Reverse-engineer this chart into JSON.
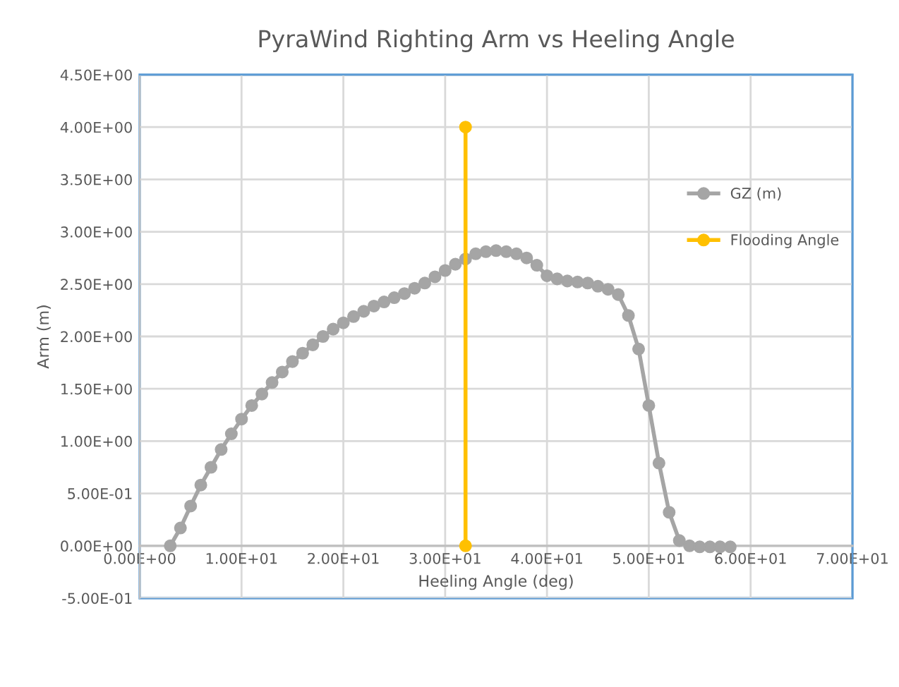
{
  "chart_data": {
    "type": "line",
    "title": "PyraWind Righting Arm vs Heeling Angle",
    "xlabel": "Heeling Angle (deg)",
    "ylabel": "Arm (m)",
    "xlim": [
      0,
      70
    ],
    "ylim": [
      -0.5,
      4.5
    ],
    "xticks": [
      {
        "value": 0,
        "label": "0.00E+00"
      },
      {
        "value": 10,
        "label": "1.00E+01"
      },
      {
        "value": 20,
        "label": "2.00E+01"
      },
      {
        "value": 30,
        "label": "3.00E+01"
      },
      {
        "value": 40,
        "label": "4.00E+01"
      },
      {
        "value": 50,
        "label": "5.00E+01"
      },
      {
        "value": 60,
        "label": "6.00E+01"
      },
      {
        "value": 70,
        "label": "7.00E+01"
      }
    ],
    "yticks": [
      {
        "value": -0.5,
        "label": "-5.00E-01"
      },
      {
        "value": 0,
        "label": "0.00E+00"
      },
      {
        "value": 0.5,
        "label": "5.00E-01"
      },
      {
        "value": 1,
        "label": "1.00E+00"
      },
      {
        "value": 1.5,
        "label": "1.50E+00"
      },
      {
        "value": 2,
        "label": "2.00E+00"
      },
      {
        "value": 2.5,
        "label": "2.50E+00"
      },
      {
        "value": 3,
        "label": "3.00E+00"
      },
      {
        "value": 3.5,
        "label": "3.50E+00"
      },
      {
        "value": 4,
        "label": "4.00E+00"
      },
      {
        "value": 4.5,
        "label": "4.50E+00"
      }
    ],
    "grid": true,
    "legend": "right",
    "marker": "circle",
    "line_style": "solid",
    "series": [
      {
        "name": "GZ (m)",
        "color": "#a5a5a5",
        "x": [
          3,
          4,
          5,
          6,
          7,
          8,
          9,
          10,
          11,
          12,
          13,
          14,
          15,
          16,
          17,
          18,
          19,
          20,
          21,
          22,
          23,
          24,
          25,
          26,
          27,
          28,
          29,
          30,
          31,
          32,
          33,
          34,
          35,
          36,
          37,
          38,
          39,
          40,
          41,
          42,
          43,
          44,
          45,
          46,
          47,
          48,
          49,
          50,
          51,
          52,
          53,
          54,
          55,
          56,
          57,
          58
        ],
        "values": [
          0.0,
          0.17,
          0.38,
          0.58,
          0.75,
          0.92,
          1.07,
          1.21,
          1.34,
          1.45,
          1.56,
          1.66,
          1.76,
          1.84,
          1.92,
          2.0,
          2.07,
          2.13,
          2.19,
          2.24,
          2.29,
          2.33,
          2.37,
          2.41,
          2.46,
          2.51,
          2.57,
          2.63,
          2.69,
          2.74,
          2.79,
          2.81,
          2.82,
          2.81,
          2.79,
          2.75,
          2.68,
          2.58,
          2.55,
          2.53,
          2.52,
          2.51,
          2.48,
          2.45,
          2.4,
          2.2,
          1.88,
          1.34,
          0.79,
          0.32,
          0.05,
          0.0,
          -0.01,
          -0.01,
          -0.01,
          -0.01
        ]
      },
      {
        "name": "Flooding Angle",
        "color": "#ffc000",
        "x": [
          32,
          32
        ],
        "values": [
          0,
          4
        ]
      }
    ]
  }
}
